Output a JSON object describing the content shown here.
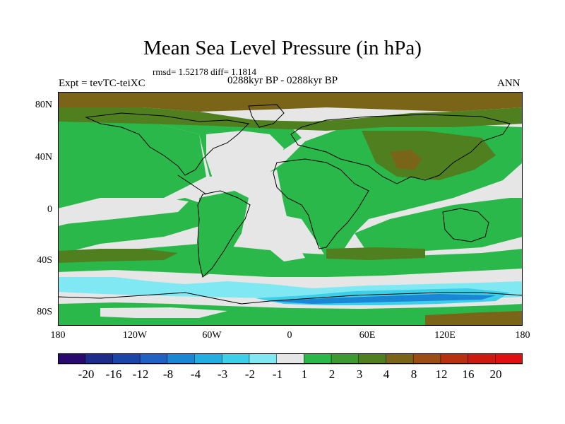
{
  "header": {
    "title": "Mean Sea Level Pressure (in hPa)",
    "stats": "rmsd= 1.52178 diff= 1.1814",
    "experiment": "Expt = tevTC-teiXC",
    "period": "0288kyr BP - 0288kyr BP",
    "season": "ANN"
  },
  "axes": {
    "y_labels": [
      "80N",
      "40N",
      "0",
      "40S",
      "80S"
    ],
    "x_labels": [
      "180",
      "120W",
      "60W",
      "0",
      "60E",
      "120E",
      "180"
    ]
  },
  "colorbar": {
    "labels": [
      "-20",
      "-16",
      "-12",
      "-8",
      "-4",
      "-3",
      "-2",
      "-1",
      "1",
      "2",
      "3",
      "4",
      "8",
      "12",
      "16",
      "20"
    ],
    "colors": [
      "#2a0a6e",
      "#1e2c8c",
      "#1b45a8",
      "#1f62c4",
      "#1a86d6",
      "#22aee0",
      "#3dcfe8",
      "#7fe8f2",
      "#e6e6e6",
      "#2bb84a",
      "#3d9a30",
      "#4f7f1e",
      "#7a6418",
      "#9c4d14",
      "#b73010",
      "#cc1a10",
      "#e01010"
    ]
  },
  "map": {
    "ocean_color": "#e6e6e6",
    "green": "#2bb84a",
    "dark_green": "#3d9a30",
    "olive": "#4f7f1e",
    "brown": "#7a6418",
    "cyan": "#3dcfe8",
    "light_cyan": "#7fe8f2",
    "blue": "#1a86d6"
  }
}
